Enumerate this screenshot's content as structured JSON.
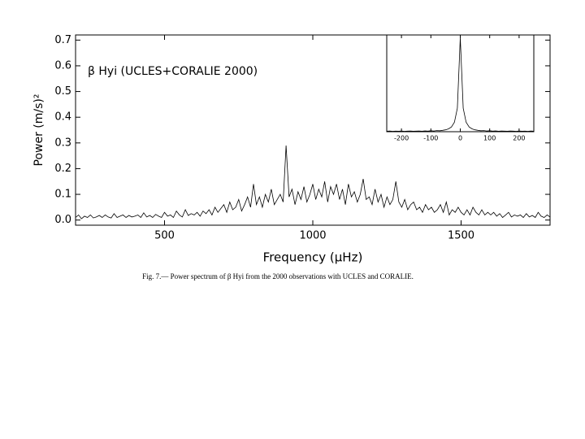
{
  "chart_data": [
    {
      "type": "line",
      "annotation": "β Hyi (UCLES+CORALIE 2000)",
      "ylabel": "Power (m/s)²",
      "xlabel": "Frequency (μHz)",
      "color": "#000000",
      "x": [
        200,
        210,
        220,
        230,
        240,
        250,
        260,
        270,
        280,
        290,
        300,
        310,
        320,
        330,
        340,
        350,
        360,
        370,
        380,
        390,
        400,
        410,
        420,
        430,
        440,
        450,
        460,
        470,
        480,
        490,
        500,
        510,
        520,
        530,
        540,
        550,
        560,
        570,
        580,
        590,
        600,
        610,
        620,
        630,
        640,
        650,
        660,
        670,
        680,
        690,
        700,
        710,
        720,
        730,
        740,
        750,
        760,
        770,
        780,
        790,
        800,
        810,
        820,
        830,
        840,
        850,
        860,
        870,
        880,
        890,
        900,
        910,
        920,
        930,
        940,
        950,
        960,
        970,
        980,
        990,
        1000,
        1010,
        1020,
        1030,
        1040,
        1050,
        1060,
        1070,
        1080,
        1090,
        1100,
        1110,
        1120,
        1130,
        1140,
        1150,
        1160,
        1170,
        1180,
        1190,
        1200,
        1210,
        1220,
        1230,
        1240,
        1250,
        1260,
        1270,
        1280,
        1290,
        1300,
        1310,
        1320,
        1330,
        1340,
        1350,
        1360,
        1370,
        1380,
        1390,
        1400,
        1410,
        1420,
        1430,
        1440,
        1450,
        1460,
        1470,
        1480,
        1490,
        1500,
        1510,
        1520,
        1530,
        1540,
        1550,
        1560,
        1570,
        1580,
        1590,
        1600,
        1610,
        1620,
        1630,
        1640,
        1650,
        1660,
        1670,
        1680,
        1690,
        1700,
        1710,
        1720,
        1730,
        1740,
        1750,
        1760,
        1770,
        1780,
        1790,
        1800
      ],
      "values": [
        0.01,
        0.02,
        0.005,
        0.015,
        0.01,
        0.02,
        0.008,
        0.012,
        0.018,
        0.01,
        0.02,
        0.012,
        0.008,
        0.025,
        0.01,
        0.015,
        0.02,
        0.01,
        0.018,
        0.012,
        0.015,
        0.02,
        0.01,
        0.028,
        0.012,
        0.018,
        0.01,
        0.022,
        0.015,
        0.01,
        0.03,
        0.015,
        0.02,
        0.01,
        0.035,
        0.02,
        0.012,
        0.04,
        0.018,
        0.025,
        0.02,
        0.03,
        0.015,
        0.035,
        0.025,
        0.04,
        0.02,
        0.05,
        0.03,
        0.045,
        0.06,
        0.03,
        0.07,
        0.04,
        0.05,
        0.08,
        0.035,
        0.06,
        0.09,
        0.05,
        0.14,
        0.06,
        0.09,
        0.05,
        0.1,
        0.07,
        0.12,
        0.06,
        0.08,
        0.1,
        0.07,
        0.29,
        0.09,
        0.12,
        0.06,
        0.11,
        0.08,
        0.13,
        0.07,
        0.1,
        0.14,
        0.08,
        0.12,
        0.09,
        0.15,
        0.07,
        0.13,
        0.1,
        0.14,
        0.08,
        0.12,
        0.06,
        0.14,
        0.09,
        0.11,
        0.07,
        0.1,
        0.16,
        0.08,
        0.09,
        0.06,
        0.12,
        0.07,
        0.1,
        0.05,
        0.09,
        0.06,
        0.08,
        0.15,
        0.07,
        0.05,
        0.08,
        0.04,
        0.06,
        0.07,
        0.04,
        0.05,
        0.03,
        0.06,
        0.04,
        0.05,
        0.03,
        0.04,
        0.06,
        0.03,
        0.07,
        0.02,
        0.04,
        0.03,
        0.05,
        0.03,
        0.02,
        0.04,
        0.02,
        0.05,
        0.03,
        0.02,
        0.04,
        0.02,
        0.03,
        0.02,
        0.03,
        0.015,
        0.025,
        0.01,
        0.02,
        0.03,
        0.012,
        0.02,
        0.015,
        0.02,
        0.01,
        0.025,
        0.012,
        0.018,
        0.01,
        0.03,
        0.015,
        0.01,
        0.02,
        0.012
      ],
      "xlim": [
        200,
        1800
      ],
      "xticks": [
        500,
        1000,
        1500
      ],
      "ylim": [
        -0.02,
        0.72
      ],
      "yticks": [
        {
          "value": 0,
          "label": "0.0"
        },
        0.1,
        0.2,
        0.3,
        0.4,
        0.5,
        0.6,
        0.7
      ]
    },
    {
      "type": "line",
      "color": "#000000",
      "x": [
        -250,
        -240,
        -230,
        -220,
        -210,
        -200,
        -190,
        -180,
        -170,
        -160,
        -150,
        -140,
        -130,
        -120,
        -110,
        -100,
        -90,
        -80,
        -70,
        -60,
        -50,
        -40,
        -30,
        -20,
        -10,
        0,
        10,
        20,
        30,
        40,
        50,
        60,
        70,
        80,
        90,
        100,
        110,
        120,
        130,
        140,
        150,
        160,
        170,
        180,
        190,
        200,
        210,
        220,
        230,
        240,
        250
      ],
      "values": [
        0.005,
        0.008,
        0.004,
        0.006,
        0.005,
        0.007,
        0.004,
        0.006,
        0.008,
        0.005,
        0.006,
        0.007,
        0.005,
        0.009,
        0.006,
        0.01,
        0.008,
        0.012,
        0.01,
        0.015,
        0.02,
        0.03,
        0.05,
        0.1,
        0.25,
        1.0,
        0.25,
        0.1,
        0.05,
        0.03,
        0.02,
        0.015,
        0.01,
        0.012,
        0.008,
        0.01,
        0.006,
        0.009,
        0.005,
        0.007,
        0.006,
        0.005,
        0.008,
        0.006,
        0.004,
        0.007,
        0.005,
        0.006,
        0.004,
        0.008,
        0.005
      ],
      "xlim": [
        -250,
        250
      ],
      "xticks": [
        -200,
        -100,
        0,
        100,
        200
      ],
      "ylim": [
        0,
        1.03
      ]
    }
  ],
  "caption": "Fig. 7.— Power spectrum of β Hyi from the 2000 observations with UCLES and CORALIE."
}
